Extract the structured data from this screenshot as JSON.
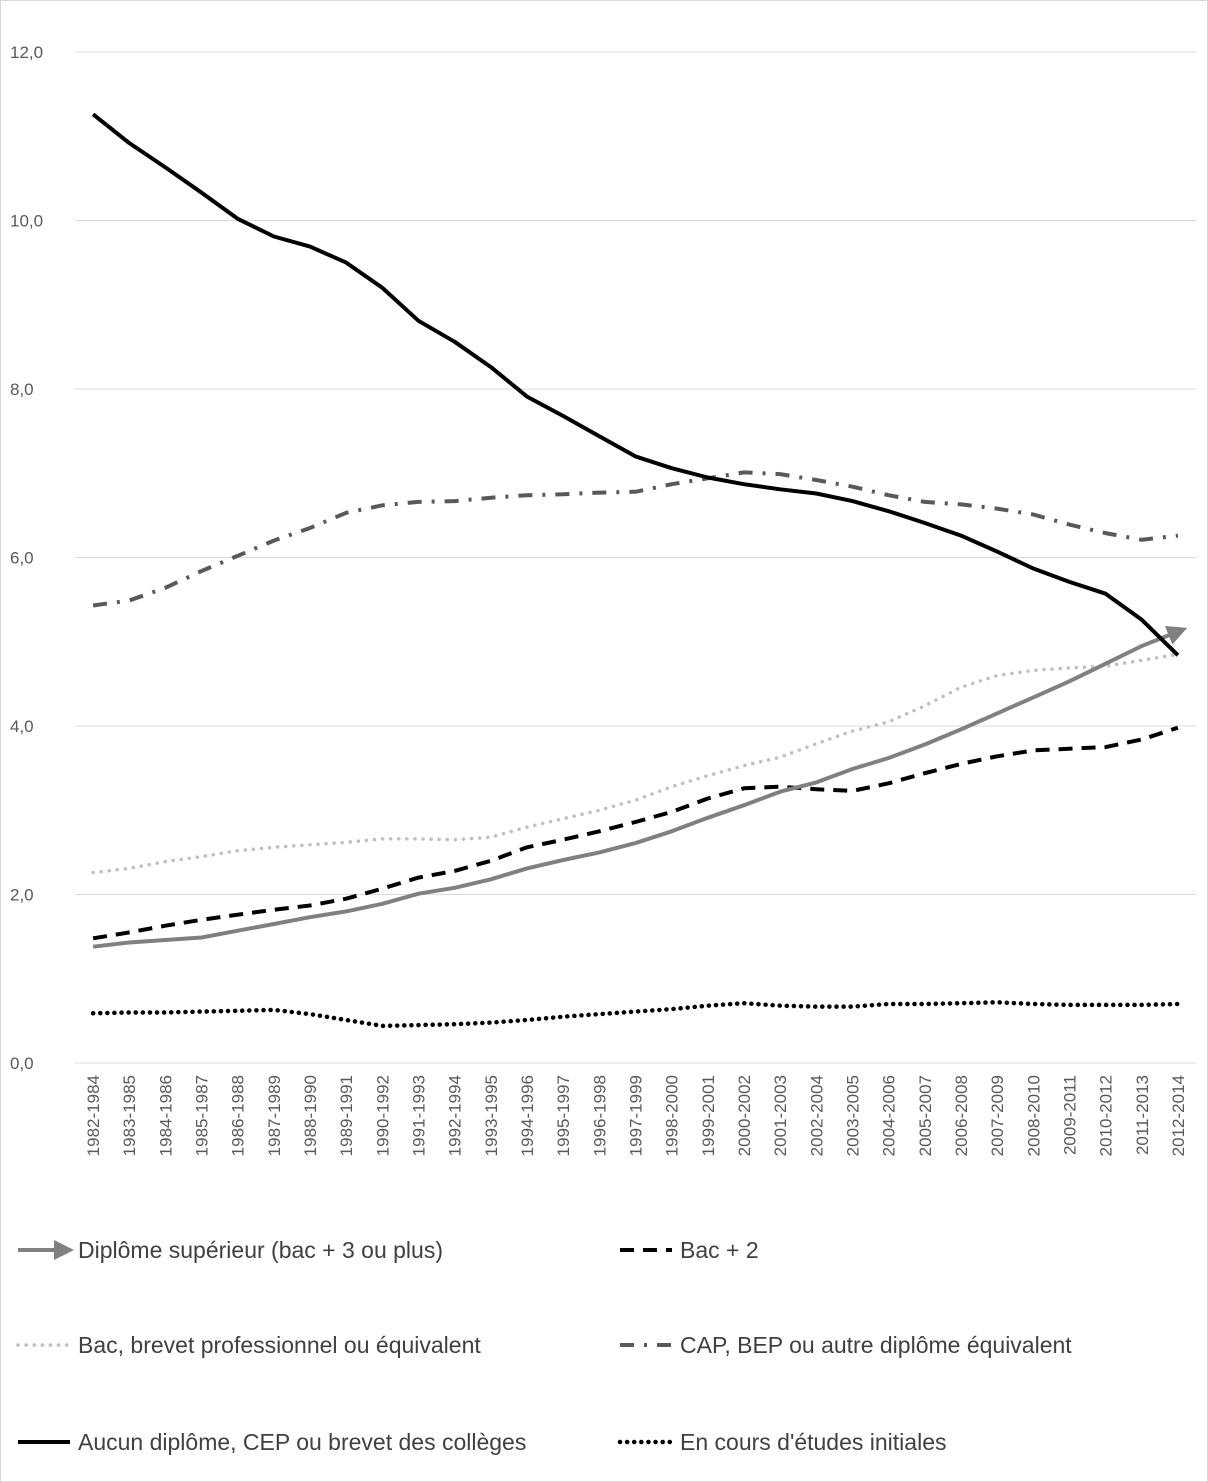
{
  "chart_data": {
    "type": "line",
    "title": "",
    "xlabel": "",
    "ylabel": "",
    "ylim": [
      0,
      12
    ],
    "yticks": [
      "0,0",
      "2,0",
      "4,0",
      "6,0",
      "8,0",
      "10,0",
      "12,0"
    ],
    "grid": "horizontal",
    "legend_position": "bottom",
    "categories": [
      "1982-1984",
      "1983-1985",
      "1984-1986",
      "1985-1987",
      "1986-1988",
      "1987-1989",
      "1988-1990",
      "1989-1991",
      "1990-1992",
      "1991-1993",
      "1992-1994",
      "1993-1995",
      "1994-1996",
      "1995-1997",
      "1996-1998",
      "1997-1999",
      "1998-2000",
      "1999-2001",
      "2000-2002",
      "2001-2003",
      "2002-2004",
      "2003-2005",
      "2004-2006",
      "2005-2007",
      "2006-2008",
      "2007-2009",
      "2008-2010",
      "2009-2011",
      "2010-2012",
      "2011-2013",
      "2012-2014"
    ],
    "series": [
      {
        "name": "Diplôme supérieur (bac + 3 ou plus)",
        "color": "#808080",
        "style": "solid-arrow",
        "values": [
          1.38,
          1.43,
          1.46,
          1.49,
          1.57,
          1.65,
          1.73,
          1.8,
          1.89,
          2.01,
          2.08,
          2.18,
          2.31,
          2.41,
          2.5,
          2.61,
          2.75,
          2.91,
          3.06,
          3.22,
          3.33,
          3.49,
          3.62,
          3.78,
          3.96,
          4.15,
          4.34,
          4.53,
          4.74,
          4.95,
          5.12
        ]
      },
      {
        "name": "Bac + 2",
        "color": "#000000",
        "style": "dash",
        "values": [
          1.48,
          1.55,
          1.63,
          1.7,
          1.76,
          1.82,
          1.87,
          1.95,
          2.07,
          2.2,
          2.28,
          2.4,
          2.56,
          2.65,
          2.75,
          2.86,
          2.98,
          3.14,
          3.26,
          3.28,
          3.25,
          3.23,
          3.32,
          3.44,
          3.55,
          3.64,
          3.71,
          3.73,
          3.75,
          3.84,
          3.98
        ]
      },
      {
        "name": "Bac, brevet professionnel ou équivalent",
        "color": "#bfbfbf",
        "style": "dot",
        "values": [
          2.26,
          2.31,
          2.39,
          2.45,
          2.52,
          2.56,
          2.59,
          2.62,
          2.66,
          2.66,
          2.65,
          2.68,
          2.8,
          2.9,
          3.0,
          3.12,
          3.28,
          3.41,
          3.53,
          3.63,
          3.79,
          3.94,
          4.05,
          4.24,
          4.46,
          4.6,
          4.66,
          4.69,
          4.71,
          4.78,
          4.85
        ]
      },
      {
        "name": "CAP, BEP ou autre diplôme équivalent",
        "color": "#595959",
        "style": "dash-dot",
        "values": [
          5.43,
          5.49,
          5.64,
          5.84,
          6.02,
          6.2,
          6.35,
          6.53,
          6.62,
          6.66,
          6.67,
          6.71,
          6.74,
          6.75,
          6.77,
          6.78,
          6.87,
          6.94,
          7.01,
          6.99,
          6.92,
          6.84,
          6.74,
          6.66,
          6.63,
          6.58,
          6.51,
          6.39,
          6.29,
          6.21,
          6.26
        ]
      },
      {
        "name": "Aucun diplôme, CEP ou brevet des collèges",
        "color": "#000000",
        "style": "solid",
        "values": [
          11.26,
          10.92,
          10.63,
          10.33,
          10.02,
          9.81,
          9.69,
          9.5,
          9.2,
          8.81,
          8.56,
          8.26,
          7.91,
          7.68,
          7.44,
          7.2,
          7.06,
          6.95,
          6.87,
          6.81,
          6.76,
          6.67,
          6.55,
          6.41,
          6.26,
          6.07,
          5.87,
          5.71,
          5.57,
          5.26,
          4.84
        ]
      },
      {
        "name": "En cours d'études initiales",
        "color": "#000000",
        "style": "dense-dot",
        "values": [
          0.59,
          0.6,
          0.6,
          0.61,
          0.62,
          0.63,
          0.58,
          0.51,
          0.44,
          0.45,
          0.46,
          0.48,
          0.51,
          0.55,
          0.58,
          0.61,
          0.64,
          0.68,
          0.71,
          0.68,
          0.67,
          0.67,
          0.7,
          0.7,
          0.71,
          0.72,
          0.7,
          0.69,
          0.69,
          0.69,
          0.7
        ]
      }
    ]
  }
}
